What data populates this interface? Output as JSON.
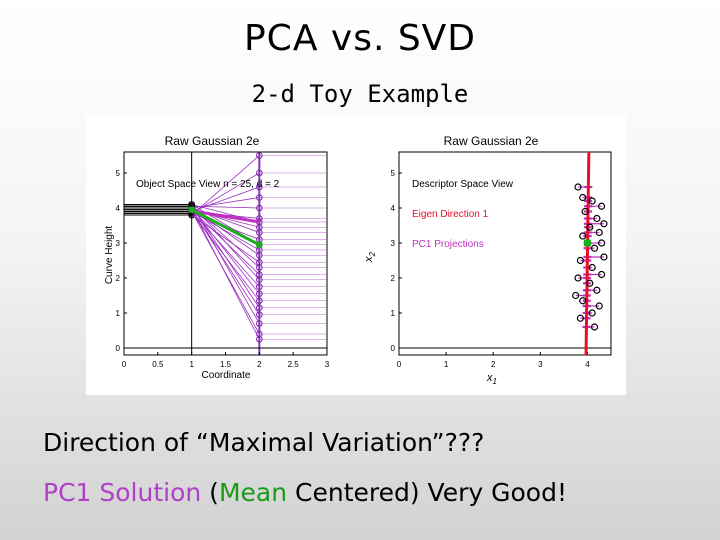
{
  "slide": {
    "title": "PCA vs. SVD",
    "subtitle": "2-d Toy Example",
    "line1": "Direction of “Maximal Variation”???",
    "line2_a": "PC1 Solution",
    "line2_b": " (",
    "line2_c": "Mean",
    "line2_d": " Centered)  Very Good!"
  },
  "colors": {
    "magenta": "#b040c8",
    "green": "#1b9a1b",
    "red": "#e8102a",
    "purple": "#8a2fbe"
  },
  "chart_data": [
    {
      "type": "line",
      "title": "Raw Gaussian 2e",
      "xlabel": "Coordinate",
      "ylabel": "Curve Height",
      "xlim": [
        0,
        3
      ],
      "ylim": [
        -0.2,
        5.6
      ],
      "xticks": [
        0,
        0.5,
        1,
        1.5,
        2,
        2.5,
        3
      ],
      "yticks": [
        0,
        1,
        2,
        3,
        4,
        5
      ],
      "xtick_labels": [
        "0",
        "0.5",
        "1",
        "1.5",
        "2",
        "2.5",
        "3"
      ],
      "ytick_labels": [
        "0",
        "1",
        "2",
        "3",
        "4",
        "5"
      ],
      "annotation": "Object Space View n = 25, d = 2",
      "mean_line": [
        [
          1,
          3.95
        ],
        [
          2,
          2.95
        ]
      ],
      "pc1_line": [
        [
          1,
          3.92
        ],
        [
          2,
          3.6
        ]
      ],
      "curves": [
        [
          3.8,
          5.5
        ],
        [
          3.85,
          5.0
        ],
        [
          3.9,
          4.6
        ],
        [
          4.0,
          4.3
        ],
        [
          4.05,
          4.0
        ],
        [
          3.9,
          3.7
        ],
        [
          4.1,
          3.6
        ],
        [
          3.95,
          3.45
        ],
        [
          4.0,
          3.3
        ],
        [
          3.85,
          3.1
        ],
        [
          4.1,
          2.95
        ],
        [
          3.9,
          2.8
        ],
        [
          4.0,
          2.65
        ],
        [
          3.8,
          2.45
        ],
        [
          4.05,
          2.3
        ],
        [
          3.95,
          2.1
        ],
        [
          4.1,
          1.95
        ],
        [
          3.9,
          1.75
        ],
        [
          4.0,
          1.55
        ],
        [
          3.85,
          1.35
        ],
        [
          4.05,
          1.15
        ],
        [
          3.95,
          0.95
        ],
        [
          4.1,
          0.7
        ],
        [
          3.9,
          0.4
        ],
        [
          4.0,
          0.25
        ]
      ]
    },
    {
      "type": "scatter",
      "title": "Raw Gaussian 2e",
      "xlabel": "x1",
      "ylabel": "x2",
      "xlim": [
        0,
        4.5
      ],
      "ylim": [
        -0.2,
        5.6
      ],
      "xticks": [
        0,
        1,
        2,
        3,
        4
      ],
      "yticks": [
        0,
        1,
        2,
        3,
        4,
        5
      ],
      "xtick_labels": [
        "0",
        "1",
        "2",
        "3",
        "4"
      ],
      "ytick_labels": [
        "0",
        "1",
        "2",
        "3",
        "4",
        "5"
      ],
      "legend": [
        "Descriptor Space View",
        "Eigen Direction 1",
        "PC1 Projections"
      ],
      "points": [
        [
          3.8,
          4.6
        ],
        [
          3.9,
          4.3
        ],
        [
          4.1,
          4.2
        ],
        [
          4.3,
          4.05
        ],
        [
          3.95,
          3.9
        ],
        [
          4.2,
          3.7
        ],
        [
          4.35,
          3.55
        ],
        [
          4.05,
          3.45
        ],
        [
          4.25,
          3.3
        ],
        [
          3.9,
          3.2
        ],
        [
          4.3,
          3.0
        ],
        [
          4.15,
          2.85
        ],
        [
          4.35,
          2.6
        ],
        [
          3.85,
          2.5
        ],
        [
          4.1,
          2.3
        ],
        [
          4.3,
          2.1
        ],
        [
          3.8,
          2.0
        ],
        [
          4.05,
          1.85
        ],
        [
          4.2,
          1.65
        ],
        [
          3.75,
          1.5
        ],
        [
          3.9,
          1.35
        ],
        [
          4.25,
          1.2
        ],
        [
          4.1,
          1.0
        ],
        [
          3.85,
          0.85
        ],
        [
          4.15,
          0.6
        ]
      ],
      "eigen_line": [
        [
          3.97,
          -0.2
        ],
        [
          4.03,
          5.6
        ]
      ],
      "mean_point": [
        4.0,
        3.0
      ]
    }
  ]
}
